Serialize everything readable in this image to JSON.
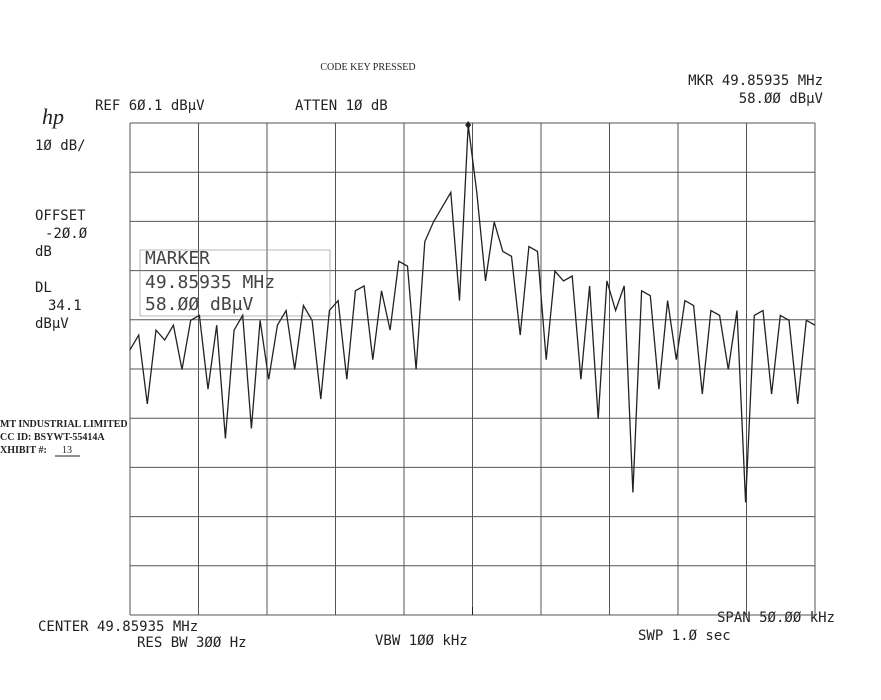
{
  "chart_data": {
    "type": "line",
    "title": "CODE KEY PRESSED",
    "header": {
      "logo": "hp",
      "ref": "REF 6Ø.1 dBµV",
      "atten": "ATTEN 1Ø dB",
      "marker_freq": "MKR 49.85935 MHz",
      "marker_level": "58.ØØ dBµV"
    },
    "left_labels": [
      "1Ø dB/",
      "OFFSET",
      "-2Ø.Ø",
      "dB",
      "DL",
      "34.1",
      "dBµV"
    ],
    "marker_box": [
      "MARKER",
      "49.85935 MHz",
      "58.ØØ dBµV"
    ],
    "exhibit": [
      "MT INDUSTRIAL LIMITED",
      "CC ID:  BSYWT-55414A",
      "XHIBIT #:",
      "13"
    ],
    "footer": {
      "center": "CENTER 49.85935 MHz",
      "rbw": "RES BW 3ØØ Hz",
      "vbw": "VBW 1ØØ kHz",
      "span": "SPAN 5Ø.ØØ kHz",
      "swp": "SWP 1.Ø  sec"
    },
    "ylim": [
      -39.9,
      60.1
    ],
    "color": "#222",
    "values": [
      14,
      17,
      3,
      18,
      16,
      19,
      10,
      20,
      21,
      6,
      19,
      -4,
      18,
      21,
      -2,
      20,
      8,
      19,
      22,
      10,
      23,
      20,
      4,
      22,
      24,
      8,
      26,
      27,
      12,
      26,
      18,
      32,
      31,
      10,
      36,
      40,
      43,
      46,
      24,
      59.7,
      46,
      28,
      40,
      34,
      33,
      17,
      35,
      34,
      12,
      30,
      28,
      29,
      8,
      27,
      0,
      28,
      22,
      27,
      -15,
      26,
      25,
      6,
      24,
      12,
      24,
      23,
      5,
      22,
      21,
      10,
      22,
      -17,
      21,
      22,
      5,
      21,
      20,
      3,
      20,
      19
    ]
  }
}
